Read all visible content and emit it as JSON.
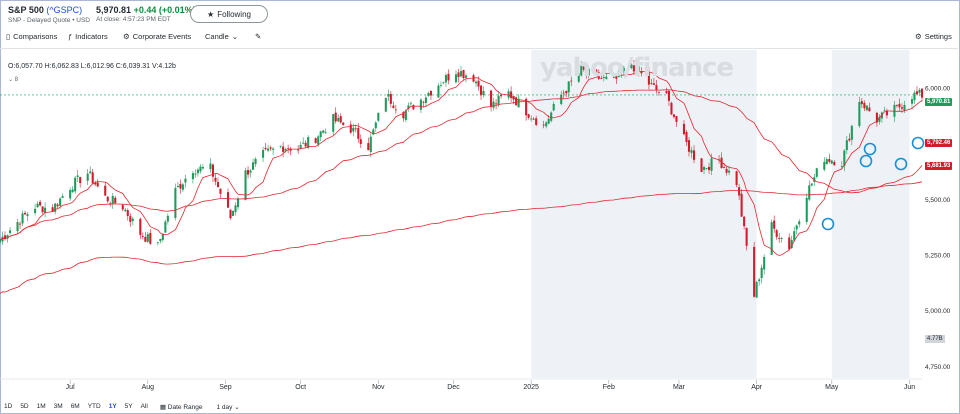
{
  "header": {
    "symbol": "S&P 500",
    "ticker": "(^GSPC)",
    "subtitle": "SNP - Delayed Quote • USD",
    "price": "5,970.81",
    "change": "+0.44",
    "change_pct": "(+0.01%)",
    "close_time": "At close: 4:57:23 PM EDT",
    "follow_label": "Following"
  },
  "toolbar": {
    "comparisons": "Comparisons",
    "indicators": "Indicators",
    "events": "Corporate Events",
    "chart_type": "Candle",
    "settings": "Settings"
  },
  "ohlc": {
    "text": "O:6,057.70  H:6,062.83  L:6,012.96  C:6,039.31  V:4.12b",
    "legend_count": "8"
  },
  "watermark": "yahoo/finance",
  "ranges": [
    "1D",
    "5D",
    "1M",
    "3M",
    "6M",
    "YTD",
    "1Y",
    "5Y",
    "All"
  ],
  "active_range": "1Y",
  "date_range_label": "Date Range",
  "interval_label": "1 day",
  "tags": {
    "last": "5,970.81",
    "ma1": "5,792.46",
    "ma2": "5,681.93",
    "volume": "4.77B"
  },
  "icons": {
    "follow": "star-icon",
    "comparisons": "compare-icon",
    "indicators": "indicators-icon",
    "events": "events-icon",
    "draw": "pencil-icon",
    "settings": "gear-icon"
  },
  "colors": {
    "up": "#1f9b5c",
    "down": "#d41b2c",
    "ma": "#e4272f",
    "highlight": "#1a8fd4"
  },
  "chart_data": {
    "type": "candlestick",
    "title": "",
    "xlabel": "",
    "ylabel": "",
    "ylim": [
      4700,
      6150
    ],
    "y_ticks": [
      4750,
      5000,
      5250,
      5500,
      5750,
      6000
    ],
    "y_tick_labels": [
      "4,750.00",
      "5,000.00",
      "5,250.00",
      "5,500.00",
      "5,750.00",
      "6,000.00"
    ],
    "x_ticks": [
      "Jul",
      "Aug",
      "Sep",
      "Oct",
      "Nov",
      "Dec",
      "2025",
      "Feb",
      "Mar",
      "Apr",
      "May",
      "Jun"
    ],
    "grid": false,
    "shaded_ranges": [
      [
        "2025-01-01",
        "2025-04-01"
      ],
      [
        "2025-05-01",
        "2025-06-01"
      ]
    ],
    "close_series": {
      "x": [
        "2024-06-03",
        "2024-06-10",
        "2024-06-17",
        "2024-06-24",
        "2024-07-01",
        "2024-07-08",
        "2024-07-15",
        "2024-07-22",
        "2024-07-29",
        "2024-08-05",
        "2024-08-12",
        "2024-08-19",
        "2024-08-26",
        "2024-09-03",
        "2024-09-09",
        "2024-09-16",
        "2024-09-23",
        "2024-09-30",
        "2024-10-07",
        "2024-10-14",
        "2024-10-21",
        "2024-10-28",
        "2024-11-04",
        "2024-11-11",
        "2024-11-18",
        "2024-11-25",
        "2024-12-02",
        "2024-12-09",
        "2024-12-16",
        "2024-12-23",
        "2024-12-30",
        "2025-01-06",
        "2025-01-13",
        "2025-01-21",
        "2025-01-27",
        "2025-02-03",
        "2025-02-10",
        "2025-02-18",
        "2025-02-24",
        "2025-03-03",
        "2025-03-10",
        "2025-03-17",
        "2025-03-24",
        "2025-03-31",
        "2025-04-07",
        "2025-04-14",
        "2025-04-21",
        "2025-04-28",
        "2025-05-05",
        "2025-05-12",
        "2025-05-19",
        "2025-05-27",
        "2025-06-02"
      ],
      "values": [
        5320,
        5400,
        5470,
        5460,
        5560,
        5620,
        5510,
        5470,
        5350,
        5290,
        5540,
        5640,
        5640,
        5420,
        5620,
        5700,
        5740,
        5730,
        5780,
        5860,
        5820,
        5740,
        5970,
        5890,
        5950,
        6020,
        6080,
        6050,
        5920,
        5980,
        5900,
        5830,
        5970,
        6080,
        6050,
        6030,
        6110,
        6010,
        5960,
        5770,
        5640,
        5680,
        5580,
        5070,
        5380,
        5290,
        5530,
        5690,
        5670,
        5950,
        5860,
        5910,
        5970
      ]
    },
    "series": [
      {
        "name": "",
        "type": "ma-short"
      },
      {
        "name": "",
        "type": "ma-mid"
      },
      {
        "name": "",
        "type": "ma-long"
      }
    ],
    "last_price": 5970.81,
    "ma_values": [
      5792.46,
      5681.93
    ],
    "volume": "4.77B"
  }
}
